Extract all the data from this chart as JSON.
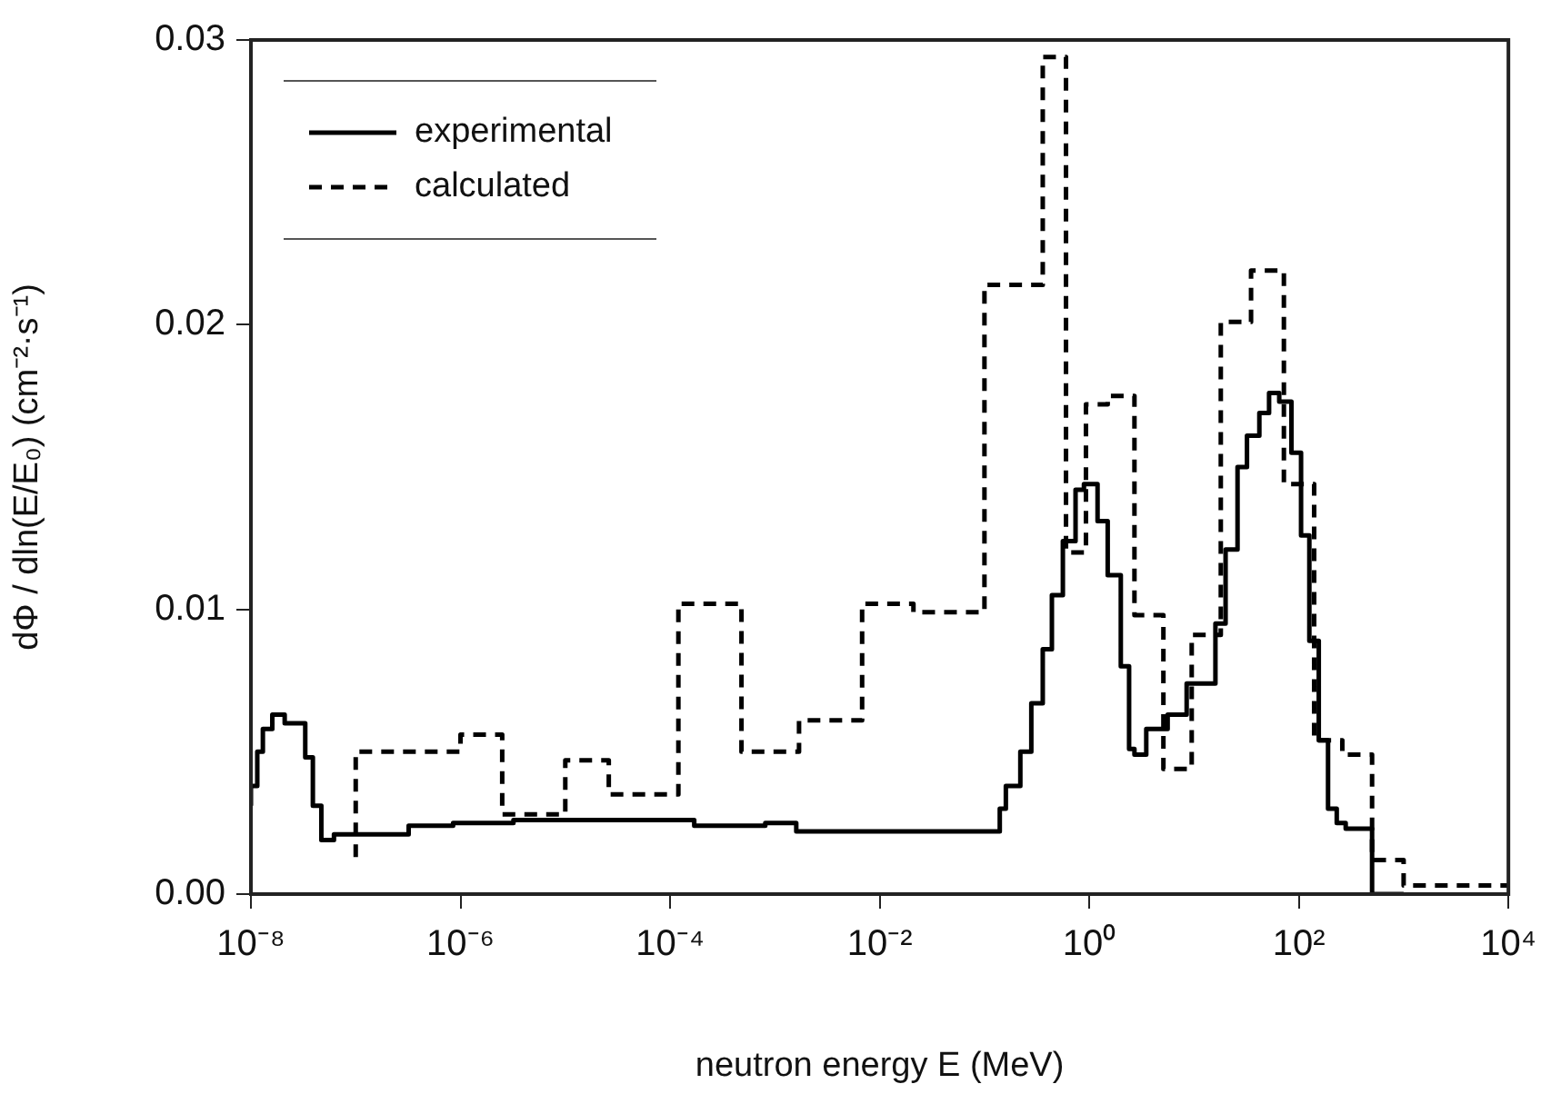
{
  "chart_data": {
    "type": "step",
    "xlabel": "neutron energy E (MeV)",
    "ylabel": "dΦ / dln(E/E₀) (cm⁻²·s⁻¹)",
    "log": "x",
    "xlim": [
      1e-08,
      10000
    ],
    "ylim": [
      0,
      0.03
    ],
    "xticks": [
      {
        "value": 1e-08,
        "label": "10⁻⁸"
      },
      {
        "value": 1e-06,
        "label": "10⁻⁶"
      },
      {
        "value": 0.0001,
        "label": "10⁻⁴"
      },
      {
        "value": 0.01,
        "label": "10⁻²"
      },
      {
        "value": 1,
        "label": "10⁰"
      },
      {
        "value": 100,
        "label": "10²"
      },
      {
        "value": 10000,
        "label": "10⁴"
      }
    ],
    "yticks": [
      {
        "value": 0,
        "label": "0.00"
      },
      {
        "value": 0.01,
        "label": "0.01"
      },
      {
        "value": 0.02,
        "label": "0.02"
      },
      {
        "value": 0.03,
        "label": "0.03"
      }
    ],
    "grid": false,
    "legend": "top left",
    "marker": "none",
    "series": [
      {
        "name": "experimental",
        "color": "#000000",
        "line_style": "solid",
        "x": [
          1e-08,
          1.15e-08,
          1.3e-08,
          1.6e-08,
          2.1e-08,
          3.3e-08,
          3.9e-08,
          4.7e-08,
          6.2e-08,
          3.2e-07,
          8.5e-07,
          3.2e-06,
          1.2e-05,
          0.00017,
          0.00081,
          0.0016,
          0.022,
          0.14,
          0.16,
          0.22,
          0.28,
          0.36,
          0.44,
          0.56,
          0.74,
          0.89,
          1.2,
          1.5,
          2,
          2.4,
          2.7,
          3.5,
          5.6,
          8.5,
          16,
          20,
          26,
          32,
          42,
          52,
          65,
          85,
          105,
          126,
          155,
          190,
          230,
          280,
          500,
          1000
        ],
        "values": [
          0.0031,
          0.0038,
          0.005,
          0.0058,
          0.0063,
          0.006,
          0.0048,
          0.0031,
          0.0019,
          0.0021,
          0.0024,
          0.0025,
          0.0026,
          0.0026,
          0.0024,
          0.0025,
          0.0022,
          0.0022,
          0.003,
          0.0038,
          0.005,
          0.0067,
          0.0086,
          0.0105,
          0.0124,
          0.0142,
          0.0144,
          0.0131,
          0.0112,
          0.008,
          0.0051,
          0.0049,
          0.0058,
          0.0063,
          0.0074,
          0.0095,
          0.0121,
          0.015,
          0.0161,
          0.0169,
          0.0176,
          0.0173,
          0.0155,
          0.0126,
          0.0089,
          0.0054,
          0.003,
          0.0025,
          0.0023,
          0
        ]
      },
      {
        "name": "calculated",
        "color": "#000000",
        "line_style": "dashed",
        "x": [
          1e-07,
          1e-06,
          2.5e-06,
          1e-05,
          2.6e-05,
          0.00012,
          0.00048,
          0.0017,
          0.0068,
          0.021,
          0.1,
          0.36,
          0.6,
          0.93,
          1.5,
          2.7,
          5.1,
          9.5,
          18,
          35,
          72,
          140,
          260,
          500,
          1000,
          1800,
          10000
        ],
        "values": [
          0.0013,
          0.005,
          0.0056,
          0.0028,
          0.0047,
          0.0035,
          0.0102,
          0.005,
          0.0061,
          0.0102,
          0.0099,
          0.0214,
          0.0294,
          0.012,
          0.0172,
          0.0175,
          0.0098,
          0.0044,
          0.0091,
          0.0201,
          0.0219,
          0.0144,
          0.0054,
          0.0049,
          0.0012,
          0.0003,
          0.0003
        ]
      }
    ]
  }
}
